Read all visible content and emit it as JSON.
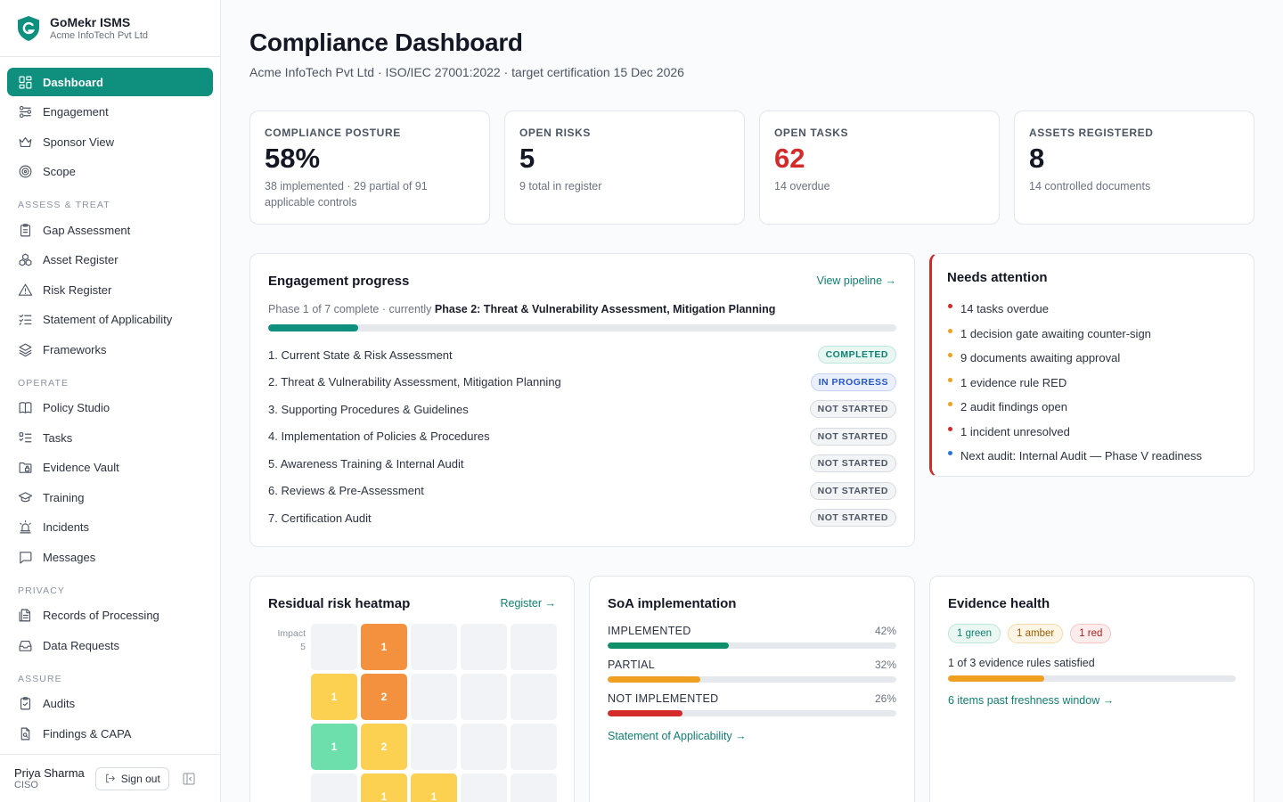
{
  "brand": {
    "name": "GoMekr ISMS",
    "org": "Acme InfoTech Pvt Ltd"
  },
  "sidebar": {
    "top": [
      {
        "label": "Dashboard",
        "icon": "dashboard-icon",
        "active": true
      },
      {
        "label": "Engagement",
        "icon": "engagement-icon"
      },
      {
        "label": "Sponsor View",
        "icon": "crown-icon"
      },
      {
        "label": "Scope",
        "icon": "target-icon"
      }
    ],
    "sections": [
      {
        "title": "ASSESS & TREAT",
        "items": [
          {
            "label": "Gap Assessment",
            "icon": "clipboard-icon"
          },
          {
            "label": "Asset Register",
            "icon": "boxes-icon"
          },
          {
            "label": "Risk Register",
            "icon": "warning-triangle-icon"
          },
          {
            "label": "Statement of Applicability",
            "icon": "checklist-icon"
          },
          {
            "label": "Frameworks",
            "icon": "layers-icon"
          }
        ]
      },
      {
        "title": "OPERATE",
        "items": [
          {
            "label": "Policy Studio",
            "icon": "book-icon"
          },
          {
            "label": "Tasks",
            "icon": "task-list-icon"
          },
          {
            "label": "Evidence Vault",
            "icon": "folder-lock-icon"
          },
          {
            "label": "Training",
            "icon": "graduation-cap-icon"
          },
          {
            "label": "Incidents",
            "icon": "siren-icon"
          },
          {
            "label": "Messages",
            "icon": "message-icon"
          }
        ]
      },
      {
        "title": "PRIVACY",
        "items": [
          {
            "label": "Records of Processing",
            "icon": "file-records-icon"
          },
          {
            "label": "Data Requests",
            "icon": "inbox-icon"
          }
        ]
      },
      {
        "title": "ASSURE",
        "items": [
          {
            "label": "Audits",
            "icon": "clipboard-check-icon"
          },
          {
            "label": "Findings & CAPA",
            "icon": "file-search-icon"
          }
        ]
      }
    ]
  },
  "user": {
    "name": "Priya Sharma",
    "role": "CISO",
    "signout": "Sign out"
  },
  "header": {
    "title": "Compliance Dashboard",
    "subtitle": "Acme InfoTech Pvt Ltd · ISO/IEC 27001:2022 · target certification 15 Dec 2026"
  },
  "kpis": [
    {
      "label": "COMPLIANCE POSTURE",
      "value": "58%",
      "sub": "38 implemented · 29 partial of 91 applicable controls",
      "alert": false
    },
    {
      "label": "OPEN RISKS",
      "value": "5",
      "sub": "9 total in register",
      "alert": false
    },
    {
      "label": "OPEN TASKS",
      "value": "62",
      "sub": "14 overdue",
      "alert": true
    },
    {
      "label": "ASSETS REGISTERED",
      "value": "8",
      "sub": "14 controlled documents",
      "alert": false
    }
  ],
  "engagement": {
    "title": "Engagement progress",
    "link": "View pipeline →",
    "phase_status": "Phase 1 of 7 complete · currently",
    "current_phase": "Phase 2: Threat & Vulnerability Assessment, Mitigation Planning",
    "progress": 0.143,
    "accent": "#0f8f7e",
    "phases": [
      {
        "name": "1. Current State & Risk Assessment",
        "status": "COMPLETED",
        "kind": "completed"
      },
      {
        "name": "2. Threat & Vulnerability Assessment, Mitigation Planning",
        "status": "IN PROGRESS",
        "kind": "progress"
      },
      {
        "name": "3. Supporting Procedures & Guidelines",
        "status": "NOT STARTED",
        "kind": "none"
      },
      {
        "name": "4. Implementation of Policies & Procedures",
        "status": "NOT STARTED",
        "kind": "none"
      },
      {
        "name": "5. Awareness Training & Internal Audit",
        "status": "NOT STARTED",
        "kind": "none"
      },
      {
        "name": "6. Reviews & Pre-Assessment",
        "status": "NOT STARTED",
        "kind": "none"
      },
      {
        "name": "7. Certification Audit",
        "status": "NOT STARTED",
        "kind": "none"
      }
    ]
  },
  "attention": {
    "title": "Needs attention",
    "items": [
      {
        "text": "14 tasks overdue",
        "color": "#d32a2a"
      },
      {
        "text": "1 decision gate awaiting counter-sign",
        "color": "#f0a020"
      },
      {
        "text": "9 documents awaiting approval",
        "color": "#f0a020"
      },
      {
        "text": "1 evidence rule RED",
        "color": "#f0a020"
      },
      {
        "text": "2 audit findings open",
        "color": "#f0a020"
      },
      {
        "text": "1 incident unresolved",
        "color": "#d32a2a"
      },
      {
        "text": "Next audit: Internal Audit — Phase V readiness",
        "color": "#2f6fe0"
      }
    ]
  },
  "heatmap": {
    "title": "Residual risk heatmap",
    "link": "Register →",
    "axis_label": "Impact",
    "axis_value": "5",
    "colors": {
      "high": "#f4913f",
      "medium": "#fcd050",
      "low": "#6ddfac",
      "empty": "#f1f3f6"
    },
    "rows": [
      [
        null,
        {
          "v": "1",
          "level": "high"
        },
        null,
        null,
        null
      ],
      [
        {
          "v": "1",
          "level": "medium"
        },
        {
          "v": "2",
          "level": "high"
        },
        null,
        null,
        null
      ],
      [
        {
          "v": "1",
          "level": "low"
        },
        {
          "v": "2",
          "level": "medium"
        },
        null,
        null,
        null
      ],
      [
        null,
        {
          "v": "1",
          "level": "medium"
        },
        {
          "v": "1",
          "level": "medium"
        },
        null,
        null
      ]
    ]
  },
  "soa": {
    "title": "SoA implementation",
    "link": "Statement of Applicability →",
    "rows": [
      {
        "label": "IMPLEMENTED",
        "pct": "42%",
        "value": 0.42,
        "color": "#0f8f6a"
      },
      {
        "label": "PARTIAL",
        "pct": "32%",
        "value": 0.32,
        "color": "#f0a020"
      },
      {
        "label": "NOT IMPLEMENTED",
        "pct": "26%",
        "value": 0.26,
        "color": "#d32a2a"
      }
    ]
  },
  "evidence": {
    "title": "Evidence health",
    "chips": [
      {
        "text": "1 green",
        "kind": "green"
      },
      {
        "text": "1 amber",
        "kind": "amber"
      },
      {
        "text": "1 red",
        "kind": "red"
      }
    ],
    "summary": "1 of 3 evidence rules satisfied",
    "satisfied": 0.333,
    "bar_color": "#f0a020",
    "link": "6 items past freshness window →"
  }
}
